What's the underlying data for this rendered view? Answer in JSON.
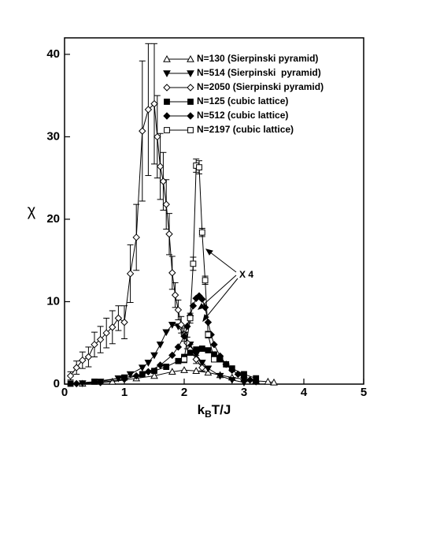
{
  "chart_data": {
    "type": "line",
    "y_label": "χ",
    "x_label_parts": [
      "k",
      "B",
      "T/J"
    ],
    "annotation": "X 4",
    "xlim": [
      0,
      5
    ],
    "ylim": [
      0,
      42
    ],
    "xticks": [
      0,
      1,
      2,
      3,
      4,
      5
    ],
    "yticks": [
      0,
      10,
      20,
      30,
      40
    ],
    "legend": "top-right",
    "series": [
      {
        "name": "N=130 (Sierpinski pyramid)",
        "color": "#000000",
        "marker": "triangle-up-open",
        "x": [
          0.3,
          0.8,
          1.2,
          1.5,
          1.8,
          2.0,
          2.2,
          2.4,
          2.6,
          2.8,
          3.0,
          3.2,
          3.4,
          3.5
        ],
        "values": [
          0.05,
          0.3,
          0.7,
          1.0,
          1.5,
          1.7,
          1.6,
          1.4,
          1.1,
          0.8,
          0.6,
          0.4,
          0.3,
          0.2
        ]
      },
      {
        "name": "N=514 (Sierpinski  pyramid)",
        "color": "#000000",
        "marker": "triangle-down",
        "x": [
          0.3,
          0.6,
          0.9,
          1.1,
          1.3,
          1.4,
          1.5,
          1.6,
          1.7,
          1.8,
          1.9,
          2.0,
          2.1,
          2.2,
          2.3,
          2.4,
          2.6,
          2.8,
          3.0
        ],
        "values": [
          0.1,
          0.3,
          0.7,
          1.2,
          2.0,
          2.6,
          3.5,
          4.8,
          6.3,
          7.2,
          7.0,
          6.0,
          4.8,
          3.6,
          2.6,
          1.9,
          1.0,
          0.5,
          0.2
        ]
      },
      {
        "name": "N=2050 (Sierpinski pyramid)",
        "color": "#000000",
        "marker": "diamond-open",
        "x": [
          0.1,
          0.2,
          0.3,
          0.4,
          0.5,
          0.6,
          0.7,
          0.8,
          0.9,
          1.0,
          1.1,
          1.2,
          1.3,
          1.4,
          1.5,
          1.55,
          1.6,
          1.65,
          1.7,
          1.75,
          1.8,
          1.85,
          1.9,
          1.95,
          2.0,
          2.05,
          2.1,
          2.2,
          2.3
        ],
        "values": [
          1.0,
          2.0,
          2.9,
          3.3,
          4.8,
          5.4,
          6.2,
          6.9,
          8.0,
          7.5,
          13.4,
          17.8,
          30.7,
          33.3,
          34.0,
          30.0,
          26.4,
          24.6,
          21.8,
          18.2,
          13.5,
          10.8,
          9.0,
          7.2,
          6.0,
          5.0,
          4.2,
          3.0,
          2.0
        ],
        "errors": [
          0.5,
          0.8,
          1.0,
          1.2,
          1.5,
          1.6,
          1.8,
          2.0,
          1.5,
          2.0,
          3.5,
          4.0,
          8.5,
          8.0,
          7.3,
          5.0,
          4.0,
          3.5,
          3.0,
          2.5,
          2.0,
          1.5,
          1.2,
          1.0,
          0.8,
          0.7,
          0.6,
          0.5,
          0.4
        ]
      },
      {
        "name": "N=125 (cubic lattice)",
        "color": "#000000",
        "marker": "square",
        "x": [
          0.1,
          0.5,
          1.0,
          1.3,
          1.5,
          1.7,
          1.9,
          2.0,
          2.1,
          2.2,
          2.3,
          2.4,
          2.5,
          2.6,
          2.7,
          2.8,
          3.0,
          3.2
        ],
        "values": [
          0.05,
          0.3,
          0.8,
          1.2,
          1.6,
          2.1,
          2.8,
          3.3,
          3.8,
          4.2,
          4.3,
          4.1,
          3.6,
          3.0,
          2.4,
          1.9,
          1.2,
          0.7
        ]
      },
      {
        "name": "N=512 (cubic lattice)",
        "color": "#000000",
        "marker": "diamond",
        "x": [
          0.2,
          0.6,
          1.0,
          1.2,
          1.4,
          1.6,
          1.8,
          1.9,
          2.0,
          2.05,
          2.1,
          2.15,
          2.2,
          2.25,
          2.3,
          2.35,
          2.4,
          2.45,
          2.5,
          2.6,
          2.7,
          2.8,
          2.9,
          3.0,
          3.1,
          3.2
        ],
        "values": [
          0.05,
          0.2,
          0.6,
          1.0,
          1.5,
          2.3,
          3.5,
          4.5,
          5.8,
          7.0,
          8.3,
          9.5,
          10.4,
          10.7,
          10.3,
          9.3,
          7.5,
          6.0,
          4.8,
          3.4,
          2.4,
          1.7,
          1.2,
          0.8,
          0.5,
          0.3
        ]
      },
      {
        "name": "N=2197 (cubic lattice)",
        "color": "#000000",
        "marker": "square-open",
        "x": [
          2.0,
          2.1,
          2.15,
          2.2,
          2.25,
          2.3,
          2.35,
          2.4,
          2.5
        ],
        "values": [
          3.0,
          8.0,
          14.6,
          26.5,
          26.3,
          18.4,
          12.6,
          6.0,
          3.0
        ],
        "errors": [
          0.4,
          0.6,
          0.8,
          0.8,
          0.8,
          0.5,
          0.5,
          0.4,
          0.3
        ]
      }
    ]
  }
}
